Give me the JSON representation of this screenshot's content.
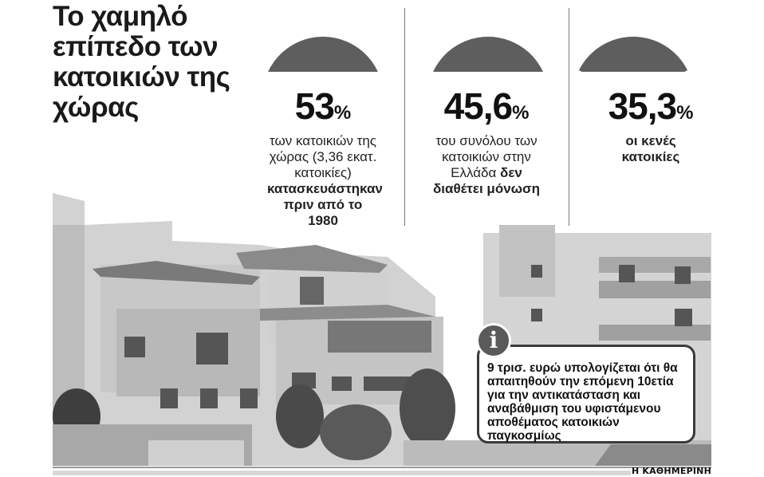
{
  "title": "Το χαμηλό επίπεδο των κατοικιών της χώρας",
  "chart_data": {
    "type": "pie",
    "note_shape": "semicircle gauges",
    "items": [
      {
        "value": 53,
        "value_label": "53",
        "unit": "%",
        "description": "των κατοικιών της χώρας (3,36 εκατ. κατοικίες)",
        "description_bold": "κατασκευάστηκαν πριν από το 1980"
      },
      {
        "value": 45.6,
        "value_label": "45,6",
        "unit": "%",
        "description": "του συνόλου των κατοικιών στην Ελλάδα",
        "description_bold": "δεν διαθέτει μόνωση"
      },
      {
        "value": 35.3,
        "value_label": "35,3",
        "unit": "%",
        "description": "",
        "description_bold": "οι κενές κατοικίες"
      }
    ]
  },
  "info": {
    "icon": "info-icon",
    "text": "9 τρισ. ευρώ υπολογίζεται ότι θα απαιτηθούν την επόμενη 10ετία για την αντικατάσταση και αναβάθμιση του υφιστάμενου αποθέματος κατοικιών παγκοσμίως"
  },
  "logo": "Η ΚΑΘΗΜΕΡΙΝΗ",
  "colors": {
    "gauge": "#5e5e5e",
    "text": "#111111"
  }
}
